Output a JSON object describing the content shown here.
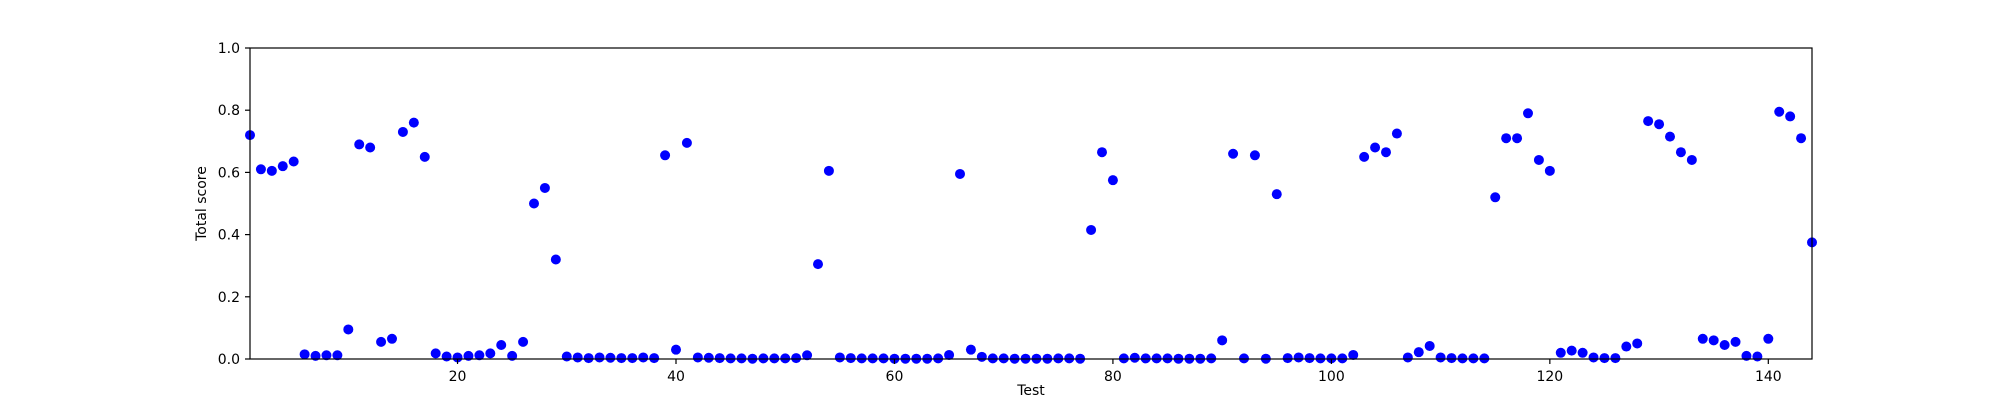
{
  "chart_data": {
    "type": "scatter",
    "title": "",
    "xlabel": "Test",
    "ylabel": "Total score",
    "xlim": [
      1,
      144
    ],
    "ylim": [
      0.0,
      1.0
    ],
    "xticks": [
      20,
      40,
      60,
      80,
      100,
      120,
      140
    ],
    "yticks": [
      0.0,
      0.2,
      0.4,
      0.6,
      0.8,
      1.0
    ],
    "ytick_labels": [
      "0.0",
      "0.2",
      "0.4",
      "0.6",
      "0.8",
      "1.0"
    ],
    "grid": false,
    "marker_color": "#0000ff",
    "x": [
      1,
      2,
      3,
      4,
      5,
      6,
      7,
      8,
      9,
      10,
      11,
      12,
      13,
      14,
      15,
      16,
      17,
      18,
      19,
      20,
      21,
      22,
      23,
      24,
      25,
      26,
      27,
      28,
      29,
      30,
      31,
      32,
      33,
      34,
      35,
      36,
      37,
      38,
      39,
      40,
      41,
      42,
      43,
      44,
      45,
      46,
      47,
      48,
      49,
      50,
      51,
      52,
      53,
      54,
      55,
      56,
      57,
      58,
      59,
      60,
      61,
      62,
      63,
      64,
      65,
      66,
      67,
      68,
      69,
      70,
      71,
      72,
      73,
      74,
      75,
      76,
      77,
      78,
      79,
      80,
      81,
      82,
      83,
      84,
      85,
      86,
      87,
      88,
      89,
      90,
      91,
      92,
      93,
      94,
      95,
      96,
      97,
      98,
      99,
      100,
      101,
      102,
      103,
      104,
      105,
      106,
      107,
      108,
      109,
      110,
      111,
      112,
      113,
      114,
      115,
      116,
      117,
      118,
      119,
      120,
      121,
      122,
      123,
      124,
      125,
      126,
      127,
      128,
      129,
      130,
      131,
      132,
      133,
      134,
      135,
      136,
      137,
      138,
      139,
      140,
      141,
      142,
      143,
      144
    ],
    "y": [
      0.72,
      0.61,
      0.605,
      0.62,
      0.635,
      0.015,
      0.01,
      0.012,
      0.012,
      0.095,
      0.69,
      0.68,
      0.055,
      0.065,
      0.73,
      0.76,
      0.65,
      0.018,
      0.008,
      0.005,
      0.01,
      0.012,
      0.018,
      0.045,
      0.01,
      0.055,
      0.5,
      0.55,
      0.32,
      0.008,
      0.005,
      0.003,
      0.005,
      0.004,
      0.003,
      0.003,
      0.005,
      0.003,
      0.655,
      0.03,
      0.695,
      0.005,
      0.004,
      0.003,
      0.002,
      0.002,
      0.001,
      0.002,
      0.002,
      0.002,
      0.003,
      0.012,
      0.305,
      0.605,
      0.005,
      0.003,
      0.002,
      0.002,
      0.002,
      0.001,
      0.001,
      0.001,
      0.001,
      0.002,
      0.013,
      0.595,
      0.03,
      0.007,
      0.002,
      0.002,
      0.001,
      0.001,
      0.001,
      0.001,
      0.002,
      0.002,
      0.001,
      0.415,
      0.665,
      0.575,
      0.002,
      0.004,
      0.002,
      0.002,
      0.002,
      0.001,
      0.001,
      0.001,
      0.002,
      0.06,
      0.66,
      0.002,
      0.655,
      0.001,
      0.53,
      0.003,
      0.005,
      0.003,
      0.002,
      0.002,
      0.002,
      0.013,
      0.65,
      0.68,
      0.665,
      0.725,
      0.005,
      0.022,
      0.042,
      0.005,
      0.003,
      0.002,
      0.002,
      0.002,
      0.52,
      0.71,
      0.71,
      0.79,
      0.64,
      0.605,
      0.02,
      0.027,
      0.02,
      0.005,
      0.003,
      0.003,
      0.04,
      0.05,
      0.765,
      0.755,
      0.715,
      0.665,
      0.64,
      0.065,
      0.06,
      0.045,
      0.055,
      0.01,
      0.008,
      0.065,
      0.795,
      0.78,
      0.71,
      0.375
    ]
  }
}
